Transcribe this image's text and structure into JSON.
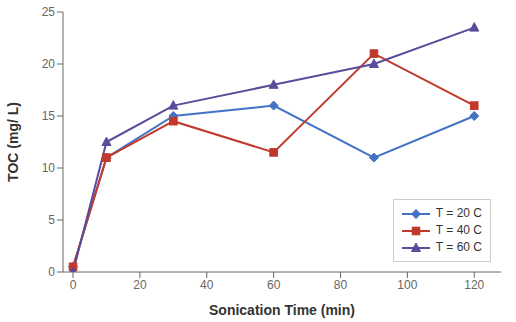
{
  "chart_data": {
    "type": "line",
    "xlabel": "Sonication Time (min)",
    "ylabel": "TOC (mg/ L)",
    "x": [
      0,
      10,
      30,
      60,
      90,
      120
    ],
    "xlim": [
      -3,
      128
    ],
    "ylim": [
      0,
      25
    ],
    "xticks": [
      0,
      20,
      40,
      60,
      80,
      100,
      120
    ],
    "yticks": [
      0,
      5,
      10,
      15,
      20,
      25
    ],
    "grid": false,
    "legend": "lower right",
    "series": [
      {
        "name": "T = 20 C",
        "color": "#4472C4",
        "marker": "diamond",
        "values": [
          0.5,
          11.0,
          15.0,
          16.0,
          11.0,
          15.0
        ]
      },
      {
        "name": "T = 40 C",
        "color": "#C0392B",
        "marker": "square",
        "values": [
          0.5,
          11.0,
          14.5,
          11.5,
          21.0,
          16.0
        ]
      },
      {
        "name": "T = 60 C",
        "color": "#5B4B9A",
        "marker": "triangle",
        "values": [
          0.0,
          12.5,
          16.0,
          18.0,
          20.0,
          23.5
        ]
      }
    ]
  }
}
